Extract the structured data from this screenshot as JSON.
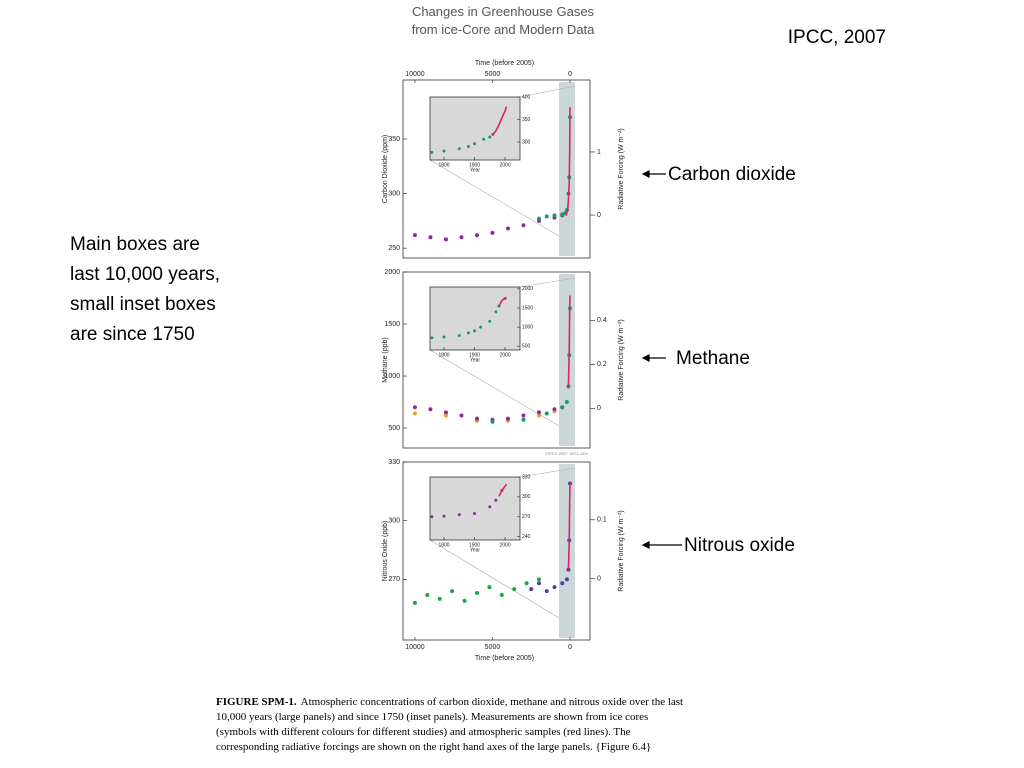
{
  "slide": {
    "title_lines": [
      "Changes in Greenhouse Gases",
      "from ice-Core and Modern Data"
    ],
    "source": "IPCC, 2007",
    "note_lines": [
      "Main boxes are",
      "last 10,000 years,",
      "small inset boxes",
      "are since 1750"
    ],
    "labels": [
      "Carbon dioxide",
      "Methane",
      "Nitrous oxide"
    ],
    "copyright": "©IPCC 2007: WG1-AR4",
    "caption": {
      "lead": "FIGURE SPM-1.",
      "lines": [
        "Atmospheric concentrations of carbon dioxide, methane and nitrous oxide over the last",
        "10,000 years (large panels) and since 1750 (inset panels). Measurements are shown from ice cores",
        "(symbols with different colours for different studies) and atmospheric samples (red lines). The",
        "corresponding radiative forcings are shown on the right hand axes of the large panels.  {Figure 6.4}"
      ]
    }
  },
  "chart_data": [
    {
      "type": "scatter",
      "xlabel": "Time (before 2005)",
      "ylabel": "Carbon Dioxide (ppm)",
      "y2label": "Radiative Forcing (W m⁻²)",
      "xlim": [
        10770,
        -1290
      ],
      "xticks": [
        10000,
        5000,
        0
      ],
      "ylim": [
        241,
        404
      ],
      "yticks": [
        250,
        300,
        350
      ],
      "y2lim": [
        -0.68,
        2.14
      ],
      "y2ticks": [
        0,
        1
      ],
      "series": [
        {
          "color": "#8e2a9c",
          "x": [
            10000,
            9000,
            8000,
            7000,
            6000,
            5000,
            4000,
            3000,
            2000,
            1000,
            500
          ],
          "values": [
            262,
            260,
            258,
            260,
            262,
            264,
            268,
            271,
            275,
            278,
            280
          ]
        },
        {
          "color": "#1a9a6a",
          "x": [
            2000,
            1500,
            1000,
            500,
            300,
            200,
            100,
            50,
            0
          ],
          "values": [
            277,
            279,
            280,
            281,
            282,
            285,
            300,
            315,
            370
          ]
        },
        {
          "color": "#e0206a",
          "style": "line",
          "x": [
            250,
            150,
            100,
            50,
            20,
            0
          ],
          "values": [
            280,
            285,
            295,
            310,
            340,
            379
          ]
        }
      ]
    },
    {
      "type": "scatter",
      "ylabel": "Methane (ppb)",
      "y2label": "Radiative Forcing (W m⁻²)",
      "xlim": [
        10770,
        -1290
      ],
      "ylim": [
        308,
        2000
      ],
      "yticks": [
        500,
        1000,
        1500,
        2000
      ],
      "y2lim": [
        -0.18,
        0.62
      ],
      "y2ticks": [
        0,
        0.2,
        0.4
      ],
      "series": [
        {
          "color": "#f0a020",
          "x": [
            10000,
            8000,
            6000,
            4000,
            2000,
            1000
          ],
          "values": [
            640,
            620,
            570,
            570,
            620,
            660
          ]
        },
        {
          "color": "#8e2a9c",
          "x": [
            10000,
            9000,
            8000,
            7000,
            6000,
            5000,
            4000,
            3000,
            2000,
            1000,
            500
          ],
          "values": [
            700,
            680,
            650,
            620,
            590,
            580,
            590,
            620,
            650,
            680,
            700
          ]
        },
        {
          "color": "#1a9a6a",
          "x": [
            5000,
            3000,
            1500,
            500,
            200,
            100,
            50,
            0
          ],
          "values": [
            560,
            580,
            640,
            700,
            750,
            900,
            1200,
            1650
          ]
        },
        {
          "color": "#e0206a",
          "style": "line",
          "x": [
            100,
            50,
            20,
            0
          ],
          "values": [
            900,
            1250,
            1650,
            1774
          ]
        }
      ]
    },
    {
      "type": "scatter",
      "xlabel": "Time (before 2005)",
      "ylabel": "Nitrous Oxide (ppb)",
      "y2label": "Radiative Forcing (W m⁻²)",
      "xlim": [
        10770,
        -1290
      ],
      "xticks": [
        10000,
        5000,
        0
      ],
      "ylim": [
        239,
        330
      ],
      "yticks": [
        270,
        300,
        330
      ],
      "y2lim": [
        -0.104,
        0.198
      ],
      "y2ticks": [
        0,
        0.1
      ],
      "series": [
        {
          "color": "#1aa83a",
          "x": [
            10000,
            9200,
            8400,
            7600,
            6800,
            6000,
            5200,
            4400,
            3600,
            2800,
            2000
          ],
          "values": [
            258,
            262,
            260,
            264,
            259,
            263,
            266,
            262,
            265,
            268,
            270
          ]
        },
        {
          "color": "#5a3aa8",
          "x": [
            2500,
            2000,
            1500,
            1000,
            500,
            200,
            100,
            50,
            0
          ],
          "values": [
            265,
            268,
            264,
            266,
            268,
            270,
            275,
            290,
            319
          ]
        },
        {
          "color": "#e0206a",
          "style": "line",
          "x": [
            100,
            50,
            20,
            0
          ],
          "values": [
            275,
            290,
            310,
            319
          ]
        }
      ]
    },
    {
      "type": "scatter",
      "xlabel": "Year",
      "xlim": [
        1754,
        2049
      ],
      "xticks": [
        1800,
        1900,
        2000
      ],
      "ylim": [
        260,
        400
      ],
      "yticks": [
        300,
        350,
        400
      ],
      "series": [
        {
          "color": "#1a9a6a",
          "x": [
            1760,
            1800,
            1850,
            1880,
            1900,
            1930,
            1950,
            1960
          ],
          "values": [
            277,
            280,
            285,
            290,
            296,
            306,
            311,
            317
          ]
        },
        {
          "color": "#e0206a",
          "style": "line",
          "x": [
            1958,
            1970,
            1980,
            1990,
            2000,
            2005
          ],
          "values": [
            315,
            325,
            338,
            354,
            369,
            379
          ]
        }
      ]
    },
    {
      "type": "scatter",
      "xlabel": "Year",
      "xlim": [
        1754,
        2049
      ],
      "xticks": [
        1800,
        1900,
        2000
      ],
      "ylim": [
        400,
        2050
      ],
      "yticks": [
        500,
        1000,
        1500,
        2000
      ],
      "series": [
        {
          "color": "#1a9a6a",
          "x": [
            1760,
            1800,
            1850,
            1880,
            1900,
            1920,
            1950,
            1970,
            1980,
            2000
          ],
          "values": [
            720,
            740,
            780,
            850,
            900,
            1000,
            1150,
            1400,
            1550,
            1750
          ]
        },
        {
          "color": "#e0206a",
          "style": "line",
          "x": [
            1980,
            1990,
            2000,
            2005
          ],
          "values": [
            1550,
            1700,
            1760,
            1774
          ]
        }
      ]
    },
    {
      "type": "scatter",
      "xlabel": "Year",
      "xlim": [
        1754,
        2049
      ],
      "xticks": [
        1800,
        1900,
        2000
      ],
      "ylim": [
        235,
        330
      ],
      "yticks": [
        240,
        270,
        300,
        330
      ],
      "series": [
        {
          "color": "#8e2a9c",
          "x": [
            1760,
            1800,
            1850,
            1900,
            1950,
            1970,
            1990
          ],
          "values": [
            270,
            271,
            273,
            275,
            285,
            295,
            310
          ]
        },
        {
          "color": "#e0206a",
          "style": "line",
          "x": [
            1980,
            1990,
            2000,
            2005
          ],
          "values": [
            301,
            310,
            316,
            319
          ]
        }
      ]
    }
  ]
}
